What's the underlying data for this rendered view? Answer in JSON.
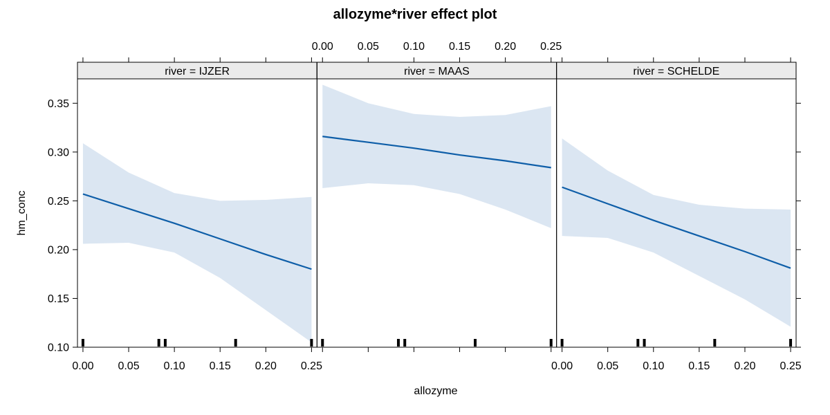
{
  "chart_data": {
    "type": "line",
    "title": "allozyme*river effect plot",
    "xlabel": "allozyme",
    "ylabel": "hm_conc",
    "xlim": [
      -0.006,
      0.256
    ],
    "ylim": [
      0.1,
      0.375
    ],
    "x_ticks": [
      0.0,
      0.05,
      0.1,
      0.15,
      0.2,
      0.25
    ],
    "x_tick_labels": [
      "0.00",
      "0.05",
      "0.10",
      "0.15",
      "0.20",
      "0.25"
    ],
    "y_ticks": [
      0.1,
      0.15,
      0.2,
      0.25,
      0.3,
      0.35
    ],
    "y_tick_labels": [
      "0.10",
      "0.15",
      "0.20",
      "0.25",
      "0.30",
      "0.35"
    ],
    "line_color": "#0e5ea8",
    "band_color": "#dbe6f2",
    "strip_color": "#ebebeb",
    "rug_x": [
      0.0,
      0.083,
      0.09,
      0.167,
      0.25
    ],
    "panels": [
      {
        "strip": "river = IJZER",
        "x": [
          0.0,
          0.05,
          0.1,
          0.15,
          0.2,
          0.25
        ],
        "fit": [
          0.257,
          0.242,
          0.227,
          0.211,
          0.195,
          0.18
        ],
        "lower": [
          0.206,
          0.207,
          0.197,
          0.171,
          0.138,
          0.105
        ],
        "upper": [
          0.309,
          0.279,
          0.258,
          0.25,
          0.251,
          0.254
        ]
      },
      {
        "strip": "river = MAAS",
        "x": [
          0.0,
          0.05,
          0.1,
          0.15,
          0.2,
          0.25
        ],
        "fit": [
          0.316,
          0.31,
          0.304,
          0.297,
          0.291,
          0.284
        ],
        "lower": [
          0.263,
          0.268,
          0.266,
          0.257,
          0.241,
          0.222
        ],
        "upper": [
          0.369,
          0.35,
          0.339,
          0.336,
          0.338,
          0.347
        ]
      },
      {
        "strip": "river = SCHELDE",
        "x": [
          0.0,
          0.05,
          0.1,
          0.15,
          0.2,
          0.25
        ],
        "fit": [
          0.264,
          0.247,
          0.23,
          0.214,
          0.198,
          0.181
        ],
        "lower": [
          0.214,
          0.212,
          0.197,
          0.173,
          0.149,
          0.121
        ],
        "upper": [
          0.314,
          0.281,
          0.256,
          0.246,
          0.242,
          0.241
        ]
      }
    ]
  }
}
